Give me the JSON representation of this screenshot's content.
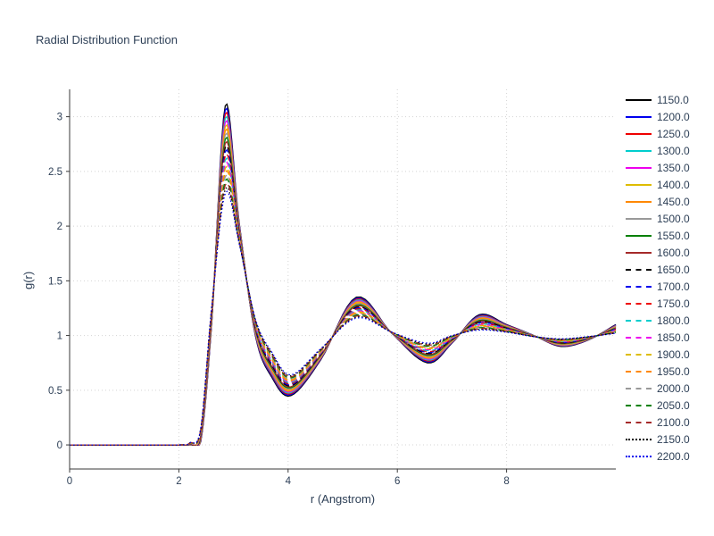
{
  "chart_data": {
    "type": "line",
    "title": "Radial Distribution Function",
    "xlabel": "r (Angstrom)",
    "ylabel": "g(r)",
    "xlim": [
      0,
      10
    ],
    "ylim": [
      -0.22,
      3.25
    ],
    "xticks": [
      0,
      2,
      4,
      6,
      8
    ],
    "yticks": [
      0,
      0.5,
      1,
      1.5,
      2,
      2.5,
      3
    ],
    "grid": true,
    "grid_style": "dotted",
    "legend_position": "right-outside",
    "text_color": "#2e4057",
    "axis_color": "#3a3a3a",
    "grid_color": "#d4d4d4",
    "x_samples": [
      0,
      1.0,
      2.0,
      2.2,
      2.4,
      2.6,
      2.85,
      3.1,
      3.4,
      3.7,
      4.05,
      4.6,
      5.25,
      5.9,
      6.55,
      7.0,
      7.5,
      8.0,
      8.5,
      9.0,
      9.5,
      10.0
    ],
    "profile_cold": [
      0,
      0,
      0,
      0,
      0.03,
      1.1,
      3.1,
      2.05,
      1.0,
      0.62,
      0.45,
      0.78,
      1.35,
      1.02,
      0.75,
      0.93,
      1.19,
      1.1,
      1.0,
      0.9,
      0.96,
      1.1
    ],
    "profile_hot": [
      0,
      0,
      0,
      0.02,
      0.15,
      1.25,
      2.3,
      1.85,
      1.15,
      0.85,
      0.64,
      0.88,
      1.16,
      1.03,
      0.93,
      1.0,
      1.05,
      1.03,
      0.99,
      0.97,
      0.99,
      1.02
    ],
    "series": [
      {
        "label": "1150.0",
        "color": "#000000",
        "linestyle": "solid",
        "mix": 0.0
      },
      {
        "label": "1200.0",
        "color": "#0000ee",
        "linestyle": "solid",
        "mix": 0.048
      },
      {
        "label": "1250.0",
        "color": "#ee0000",
        "linestyle": "solid",
        "mix": 0.095
      },
      {
        "label": "1300.0",
        "color": "#00cdcd",
        "linestyle": "solid",
        "mix": 0.143
      },
      {
        "label": "1350.0",
        "color": "#ee00ee",
        "linestyle": "solid",
        "mix": 0.19
      },
      {
        "label": "1400.0",
        "color": "#debc00",
        "linestyle": "solid",
        "mix": 0.238
      },
      {
        "label": "1450.0",
        "color": "#ff8800",
        "linestyle": "solid",
        "mix": 0.286
      },
      {
        "label": "1500.0",
        "color": "#999999",
        "linestyle": "solid",
        "mix": 0.333
      },
      {
        "label": "1550.0",
        "color": "#008000",
        "linestyle": "solid",
        "mix": 0.381
      },
      {
        "label": "1600.0",
        "color": "#a52a2a",
        "linestyle": "solid",
        "mix": 0.429
      },
      {
        "label": "1650.0",
        "color": "#000000",
        "linestyle": "dashed",
        "mix": 0.476
      },
      {
        "label": "1700.0",
        "color": "#0000ee",
        "linestyle": "dashed",
        "mix": 0.524
      },
      {
        "label": "1750.0",
        "color": "#ee0000",
        "linestyle": "dashed",
        "mix": 0.571
      },
      {
        "label": "1800.0",
        "color": "#00cdcd",
        "linestyle": "dashed",
        "mix": 0.619
      },
      {
        "label": "1850.0",
        "color": "#ee00ee",
        "linestyle": "dashed",
        "mix": 0.667
      },
      {
        "label": "1900.0",
        "color": "#debc00",
        "linestyle": "dashed",
        "mix": 0.714
      },
      {
        "label": "1950.0",
        "color": "#ff8800",
        "linestyle": "dashed",
        "mix": 0.762
      },
      {
        "label": "2000.0",
        "color": "#999999",
        "linestyle": "dashed",
        "mix": 0.81
      },
      {
        "label": "2050.0",
        "color": "#008000",
        "linestyle": "dashed",
        "mix": 0.857
      },
      {
        "label": "2100.0",
        "color": "#a52a2a",
        "linestyle": "dashed",
        "mix": 0.905
      },
      {
        "label": "2150.0",
        "color": "#000000",
        "linestyle": "dotted",
        "mix": 0.952
      },
      {
        "label": "2200.0",
        "color": "#0000ee",
        "linestyle": "dotted",
        "mix": 1.0
      }
    ]
  }
}
